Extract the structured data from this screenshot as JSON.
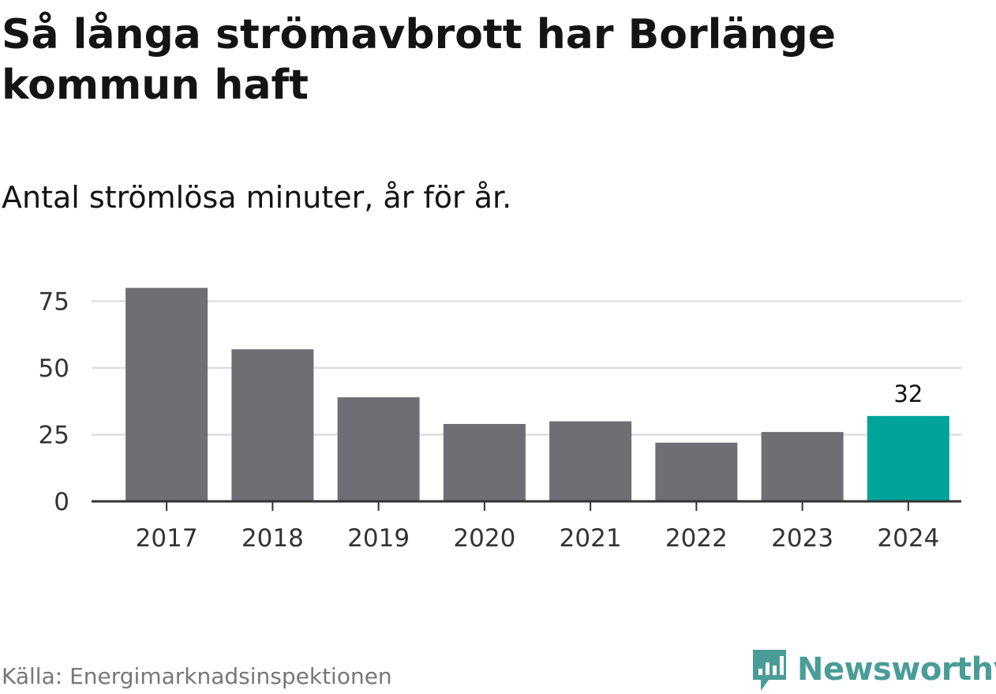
{
  "header": {
    "title": "Så långa strömavbrott har Borlänge kommun haft",
    "subtitle": "Antal strömlösa minuter, år för år."
  },
  "footer": {
    "source": "Källa: Energimarknadsinspektionen",
    "brand": "Newsworthy"
  },
  "colors": {
    "bar": "#6f6e74",
    "highlight": "#00a39a",
    "grid": "#dddddd",
    "axis": "#333333",
    "tick_text": "#333333"
  },
  "chart_data": {
    "type": "bar",
    "categories": [
      "2017",
      "2018",
      "2019",
      "2020",
      "2021",
      "2022",
      "2023",
      "2024"
    ],
    "values": [
      80,
      57,
      39,
      29,
      30,
      22,
      26,
      32
    ],
    "highlight_index": 7,
    "data_labels": [
      {
        "index": 7,
        "text": "32"
      }
    ],
    "title": "Så långa strömavbrott har Borlänge kommun haft",
    "subtitle": "Antal strömlösa minuter, år för år.",
    "xlabel": "",
    "ylabel": "",
    "ylim": [
      0,
      80
    ],
    "yticks": [
      0,
      25,
      50,
      75
    ],
    "grid": true,
    "legend": "none"
  }
}
